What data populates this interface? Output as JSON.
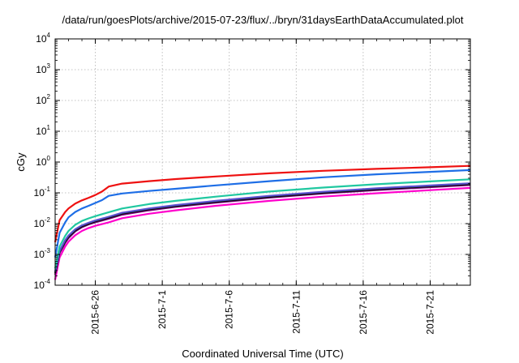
{
  "chart_data": {
    "type": "line",
    "title": "/data/run/goesPlots/archive/2015-07-23/flux/../bryn/31daysEarthDataAccumulated.plot",
    "xlabel": "Coordinated Universal Time (UTC)",
    "ylabel": "cGy",
    "yscale": "log",
    "ylim": [
      0.0001,
      10000
    ],
    "xlim": [
      "2015-06-23",
      "2015-07-24"
    ],
    "grid": true,
    "legend": "none",
    "x_ticks": [
      "2015-6-26",
      "2015-7-1",
      "2015-7-6",
      "2015-7-11",
      "2015-7-16",
      "2015-7-21"
    ],
    "y_ticks": [
      {
        "value": 0.0001,
        "base": "10",
        "exp": "-4"
      },
      {
        "value": 0.001,
        "base": "10",
        "exp": "-3"
      },
      {
        "value": 0.01,
        "base": "10",
        "exp": "-2"
      },
      {
        "value": 0.1,
        "base": "10",
        "exp": "-1"
      },
      {
        "value": 1,
        "base": "10",
        "exp": "0"
      },
      {
        "value": 10,
        "base": "10",
        "exp": "1"
      },
      {
        "value": 100,
        "base": "10",
        "exp": "2"
      },
      {
        "value": 1000,
        "base": "10",
        "exp": "3"
      },
      {
        "value": 10000,
        "base": "10",
        "exp": "4"
      }
    ],
    "series": [
      {
        "color": "#ff00cc",
        "points": [
          [
            "2015-06-23",
            0.00015
          ],
          [
            "2015-06-23T08:00",
            0.0008
          ],
          [
            "2015-06-23T18:00",
            0.0018
          ],
          [
            "2015-06-24",
            0.0026
          ],
          [
            "2015-06-24T12:00",
            0.0042
          ],
          [
            "2015-06-25",
            0.0058
          ],
          [
            "2015-06-25T12:00",
            0.0072
          ],
          [
            "2015-06-26",
            0.0085
          ],
          [
            "2015-06-27",
            0.011
          ],
          [
            "2015-06-28",
            0.015
          ],
          [
            "2015-06-30",
            0.021
          ],
          [
            "2015-07-02",
            0.027
          ],
          [
            "2015-07-05",
            0.038
          ],
          [
            "2015-07-09",
            0.055
          ],
          [
            "2015-07-13",
            0.075
          ],
          [
            "2015-07-17",
            0.097
          ],
          [
            "2015-07-21",
            0.122
          ],
          [
            "2015-07-24",
            0.145
          ]
        ]
      },
      {
        "color": "#800080",
        "points": [
          [
            "2015-06-23",
            0.00022
          ],
          [
            "2015-06-23T08:00",
            0.0011
          ],
          [
            "2015-06-23T18:00",
            0.0024
          ],
          [
            "2015-06-24",
            0.0034
          ],
          [
            "2015-06-24T12:00",
            0.0056
          ],
          [
            "2015-06-25",
            0.0076
          ],
          [
            "2015-06-25T12:00",
            0.0094
          ],
          [
            "2015-06-26",
            0.011
          ],
          [
            "2015-06-27",
            0.0145
          ],
          [
            "2015-06-28",
            0.0195
          ],
          [
            "2015-06-30",
            0.027
          ],
          [
            "2015-07-02",
            0.035
          ],
          [
            "2015-07-05",
            0.048
          ],
          [
            "2015-07-09",
            0.07
          ],
          [
            "2015-07-13",
            0.095
          ],
          [
            "2015-07-17",
            0.123
          ],
          [
            "2015-07-21",
            0.153
          ],
          [
            "2015-07-24",
            0.18
          ]
        ]
      },
      {
        "color": "#101010",
        "points": [
          [
            "2015-06-23",
            0.00025
          ],
          [
            "2015-06-23T08:00",
            0.0012
          ],
          [
            "2015-06-23T18:00",
            0.0026
          ],
          [
            "2015-06-24",
            0.0037
          ],
          [
            "2015-06-24T12:00",
            0.006
          ],
          [
            "2015-06-25",
            0.0081
          ],
          [
            "2015-06-25T12:00",
            0.0099
          ],
          [
            "2015-06-26",
            0.0118
          ],
          [
            "2015-06-27",
            0.0155
          ],
          [
            "2015-06-28",
            0.021
          ],
          [
            "2015-06-30",
            0.029
          ],
          [
            "2015-07-02",
            0.037
          ],
          [
            "2015-07-05",
            0.051
          ],
          [
            "2015-07-09",
            0.074
          ],
          [
            "2015-07-13",
            0.1
          ],
          [
            "2015-07-17",
            0.13
          ],
          [
            "2015-07-21",
            0.162
          ],
          [
            "2015-07-24",
            0.19
          ]
        ]
      },
      {
        "color": "#5a4fcf",
        "points": [
          [
            "2015-06-23",
            0.00028
          ],
          [
            "2015-06-23T08:00",
            0.0013
          ],
          [
            "2015-06-23T18:00",
            0.0029
          ],
          [
            "2015-06-24",
            0.0041
          ],
          [
            "2015-06-24T12:00",
            0.0066
          ],
          [
            "2015-06-25",
            0.0088
          ],
          [
            "2015-06-25T12:00",
            0.0107
          ],
          [
            "2015-06-26",
            0.0127
          ],
          [
            "2015-06-27",
            0.0167
          ],
          [
            "2015-06-28",
            0.0225
          ],
          [
            "2015-06-30",
            0.031
          ],
          [
            "2015-07-02",
            0.04
          ],
          [
            "2015-07-05",
            0.055
          ],
          [
            "2015-07-09",
            0.08
          ],
          [
            "2015-07-13",
            0.108
          ],
          [
            "2015-07-17",
            0.14
          ],
          [
            "2015-07-21",
            0.174
          ],
          [
            "2015-07-24",
            0.205
          ]
        ]
      },
      {
        "color": "#20c8a0",
        "points": [
          [
            "2015-06-23",
            0.00035
          ],
          [
            "2015-06-23T08:00",
            0.0018
          ],
          [
            "2015-06-23T18:00",
            0.004
          ],
          [
            "2015-06-24",
            0.0058
          ],
          [
            "2015-06-24T12:00",
            0.0092
          ],
          [
            "2015-06-25",
            0.0122
          ],
          [
            "2015-06-25T12:00",
            0.0148
          ],
          [
            "2015-06-26",
            0.0175
          ],
          [
            "2015-06-27",
            0.0235
          ],
          [
            "2015-06-28",
            0.031
          ],
          [
            "2015-06-30",
            0.043
          ],
          [
            "2015-07-02",
            0.055
          ],
          [
            "2015-07-05",
            0.075
          ],
          [
            "2015-07-09",
            0.11
          ],
          [
            "2015-07-13",
            0.148
          ],
          [
            "2015-07-17",
            0.19
          ],
          [
            "2015-07-21",
            0.235
          ],
          [
            "2015-07-24",
            0.275
          ]
        ]
      },
      {
        "color": "#1e6ee6",
        "points": [
          [
            "2015-06-23",
            0.0008
          ],
          [
            "2015-06-23T08:00",
            0.005
          ],
          [
            "2015-06-23T18:00",
            0.011
          ],
          [
            "2015-06-24",
            0.016
          ],
          [
            "2015-06-24T12:00",
            0.024
          ],
          [
            "2015-06-25",
            0.031
          ],
          [
            "2015-06-25T12:00",
            0.038
          ],
          [
            "2015-06-26",
            0.047
          ],
          [
            "2015-06-26T12:00",
            0.058
          ],
          [
            "2015-06-27",
            0.08
          ],
          [
            "2015-06-28",
            0.095
          ],
          [
            "2015-06-30",
            0.115
          ],
          [
            "2015-07-02",
            0.135
          ],
          [
            "2015-07-05",
            0.175
          ],
          [
            "2015-07-09",
            0.24
          ],
          [
            "2015-07-13",
            0.32
          ],
          [
            "2015-07-17",
            0.4
          ],
          [
            "2015-07-21",
            0.48
          ],
          [
            "2015-07-24",
            0.55
          ]
        ]
      },
      {
        "color": "#ee1111",
        "points": [
          [
            "2015-06-23",
            0.0025
          ],
          [
            "2015-06-23T08:00",
            0.013
          ],
          [
            "2015-06-23T18:00",
            0.024
          ],
          [
            "2015-06-24",
            0.031
          ],
          [
            "2015-06-24T12:00",
            0.045
          ],
          [
            "2015-06-25",
            0.057
          ],
          [
            "2015-06-25T12:00",
            0.069
          ],
          [
            "2015-06-26",
            0.085
          ],
          [
            "2015-06-26T12:00",
            0.11
          ],
          [
            "2015-06-27",
            0.16
          ],
          [
            "2015-06-28",
            0.2
          ],
          [
            "2015-06-30",
            0.24
          ],
          [
            "2015-07-02",
            0.28
          ],
          [
            "2015-07-05",
            0.34
          ],
          [
            "2015-07-09",
            0.43
          ],
          [
            "2015-07-13",
            0.52
          ],
          [
            "2015-07-17",
            0.6
          ],
          [
            "2015-07-21",
            0.68
          ],
          [
            "2015-07-24",
            0.75
          ]
        ]
      }
    ]
  }
}
